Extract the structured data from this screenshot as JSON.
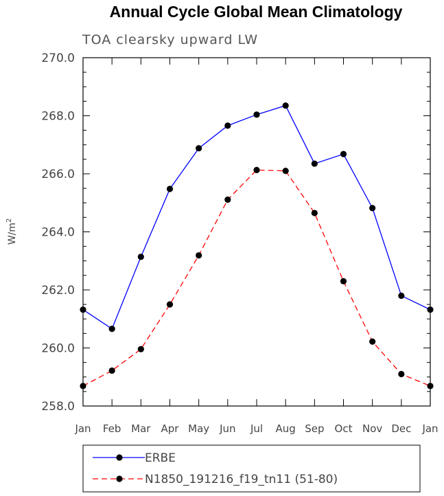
{
  "chart_data": {
    "type": "line",
    "title": "Annual Cycle Global Mean Climatology",
    "subtitle": "TOA clearsky upward LW",
    "ylabel_base": "W/m",
    "ylabel_sup": "2",
    "xlabel": "",
    "ylim": [
      258.0,
      270.0
    ],
    "yticks": [
      258.0,
      260.0,
      262.0,
      264.0,
      266.0,
      268.0,
      270.0
    ],
    "ytick_labels": [
      "258.0",
      "260.0",
      "262.0",
      "264.0",
      "266.0",
      "268.0",
      "270.0"
    ],
    "categories": [
      "Jan",
      "Feb",
      "Mar",
      "Apr",
      "May",
      "Jun",
      "Jul",
      "Aug",
      "Sep",
      "Oct",
      "Nov",
      "Dec",
      "Jan"
    ],
    "series": [
      {
        "name": "ERBE",
        "color": "#0000ff",
        "dash": "solid",
        "values": [
          261.32,
          260.66,
          263.14,
          265.48,
          266.88,
          267.66,
          268.04,
          268.35,
          266.35,
          266.68,
          264.82,
          261.8,
          261.32
        ]
      },
      {
        "name": "N1850_191216_f19_tn11 (51-80)",
        "color": "#ff0000",
        "dash": "dashed",
        "values": [
          258.69,
          259.22,
          259.96,
          261.5,
          263.19,
          265.11,
          266.13,
          266.1,
          264.65,
          262.3,
          260.22,
          259.1,
          258.69
        ]
      }
    ],
    "legend_position": "bottom"
  }
}
